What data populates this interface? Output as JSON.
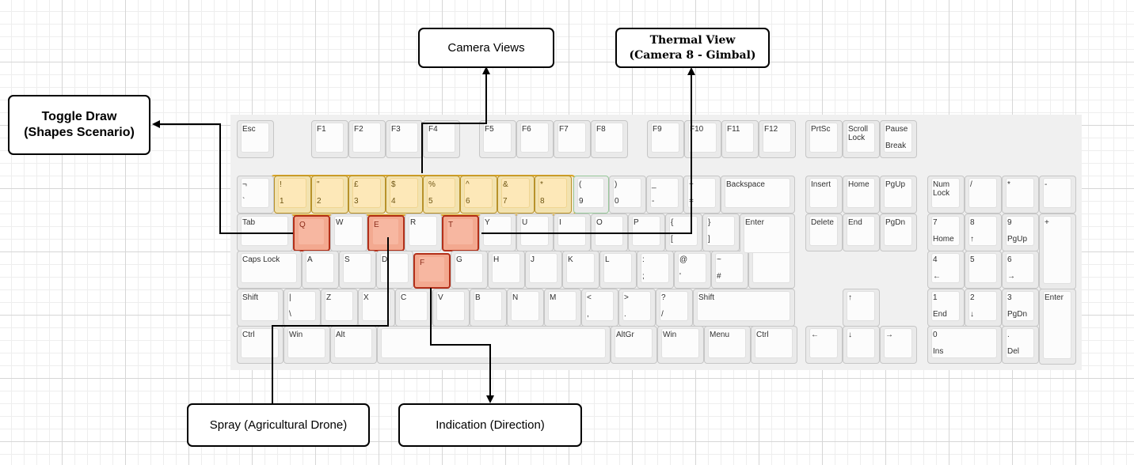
{
  "labels": {
    "toggle_draw_line1": "Toggle Draw",
    "toggle_draw_line2": "(Shapes Scenario)",
    "camera_views": "Camera Views",
    "thermal_line1": "Thermal View",
    "thermal_line2": "(Camera 8 - Gimbal)",
    "spray": "Spray (Agricultural Drone)",
    "indication": "Indication (Direction)"
  },
  "colors": {
    "number_row_highlight": "#fde8b8",
    "letter_highlight": "#f7b7a1",
    "connector": "#000000"
  },
  "keys": {
    "esc": {
      "t": "Esc"
    },
    "f1": {
      "t": "F1"
    },
    "f2": {
      "t": "F2"
    },
    "f3": {
      "t": "F3"
    },
    "f4": {
      "t": "F4"
    },
    "f5": {
      "t": "F5"
    },
    "f6": {
      "t": "F6"
    },
    "f7": {
      "t": "F7"
    },
    "f8": {
      "t": "F8"
    },
    "f9": {
      "t": "F9"
    },
    "f10": {
      "t": "F10"
    },
    "f11": {
      "t": "F11"
    },
    "f12": {
      "t": "F12"
    },
    "prtsc": {
      "t": "PrtSc"
    },
    "scroll": {
      "t": "Scroll\nLock"
    },
    "pause": {
      "t": "Pause",
      "b": "Break"
    },
    "grave": {
      "t": "¬",
      "b": "`"
    },
    "d1": {
      "t": "!",
      "b": "1"
    },
    "d2": {
      "t": "\"",
      "b": "2"
    },
    "d3": {
      "t": "£",
      "b": "3"
    },
    "d4": {
      "t": "$",
      "b": "4"
    },
    "d5": {
      "t": "%",
      "b": "5"
    },
    "d6": {
      "t": "^",
      "b": "6"
    },
    "d7": {
      "t": "&",
      "b": "7"
    },
    "d8": {
      "t": "*",
      "b": "8"
    },
    "d9": {
      "t": "(",
      "b": "9"
    },
    "d0": {
      "t": ")",
      "b": "0"
    },
    "minus": {
      "t": "_",
      "b": "-"
    },
    "equal": {
      "t": "+",
      "b": "="
    },
    "backspace": {
      "t": "Backspace"
    },
    "insert": {
      "t": "Insert"
    },
    "home": {
      "t": "Home"
    },
    "pgup": {
      "t": "PgUp"
    },
    "numlock": {
      "t": "Num\nLock"
    },
    "kpslash": {
      "t": "/"
    },
    "kpstar": {
      "t": "*"
    },
    "kpminus": {
      "t": "-"
    },
    "tab": {
      "t": "Tab"
    },
    "q": {
      "t": "Q"
    },
    "w": {
      "t": "W"
    },
    "e": {
      "t": "E"
    },
    "r": {
      "t": "R"
    },
    "tk": {
      "t": "T"
    },
    "y": {
      "t": "Y"
    },
    "u": {
      "t": "U"
    },
    "i": {
      "t": "I"
    },
    "o": {
      "t": "O"
    },
    "p": {
      "t": "P"
    },
    "lbr": {
      "t": "{",
      "b": "["
    },
    "rbr": {
      "t": "}",
      "b": "]"
    },
    "enter": {
      "t": "Enter"
    },
    "delete": {
      "t": "Delete"
    },
    "end": {
      "t": "End"
    },
    "pgdn": {
      "t": "PgDn"
    },
    "kp7": {
      "t": "7",
      "b": "Home"
    },
    "kp8": {
      "t": "8",
      "b": "↑"
    },
    "kp9": {
      "t": "9",
      "b": "PgUp"
    },
    "kpplus": {
      "t": "+"
    },
    "caps": {
      "t": "Caps Lock"
    },
    "a": {
      "t": "A"
    },
    "s": {
      "t": "S"
    },
    "d": {
      "t": "D"
    },
    "f": {
      "t": "F"
    },
    "g": {
      "t": "G"
    },
    "h": {
      "t": "H"
    },
    "j": {
      "t": "J"
    },
    "k": {
      "t": "K"
    },
    "l": {
      "t": "L"
    },
    "semi": {
      "t": ":",
      "b": ";"
    },
    "quote": {
      "t": "@",
      "b": "'"
    },
    "hash": {
      "t": "~",
      "b": "#"
    },
    "kp4": {
      "t": "4",
      "b": "←"
    },
    "kp5": {
      "t": "5"
    },
    "kp6": {
      "t": "6",
      "b": "→"
    },
    "lshift": {
      "t": "Shift"
    },
    "bslash": {
      "t": "|",
      "b": "\\"
    },
    "z": {
      "t": "Z"
    },
    "x": {
      "t": "X"
    },
    "c": {
      "t": "C"
    },
    "v": {
      "t": "V"
    },
    "bk": {
      "t": "B"
    },
    "n": {
      "t": "N"
    },
    "m": {
      "t": "M"
    },
    "comma": {
      "t": "<",
      "b": ","
    },
    "period": {
      "t": ">",
      "b": "."
    },
    "slash": {
      "t": "?",
      "b": "/"
    },
    "rshift": {
      "t": "Shift"
    },
    "up": {
      "t": "↑"
    },
    "kp1": {
      "t": "1",
      "b": "End"
    },
    "kp2": {
      "t": "2",
      "b": "↓"
    },
    "kp3": {
      "t": "3",
      "b": "PgDn"
    },
    "kpenter": {
      "t": "Enter"
    },
    "lctrl": {
      "t": "Ctrl"
    },
    "lwin": {
      "t": "Win"
    },
    "alt": {
      "t": "Alt"
    },
    "space": {
      "t": ""
    },
    "altgr": {
      "t": "AltGr"
    },
    "rwin": {
      "t": "Win"
    },
    "menu": {
      "t": "Menu"
    },
    "rctrl": {
      "t": "Ctrl"
    },
    "left": {
      "t": "←"
    },
    "down": {
      "t": "↓"
    },
    "right": {
      "t": "→"
    },
    "kp0": {
      "t": "0",
      "b": "Ins"
    },
    "kpdot": {
      "t": ".",
      "b": "Del"
    }
  }
}
